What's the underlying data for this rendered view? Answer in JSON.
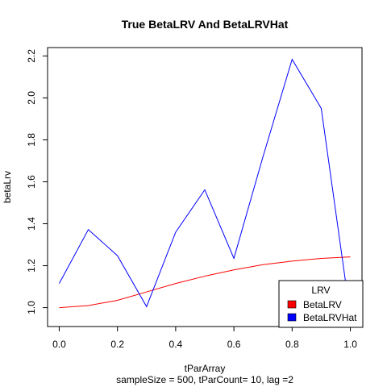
{
  "chart_data": {
    "type": "line",
    "title": "True BetaLRV And BetaLRVHat",
    "xlabel": "tParArray",
    "subtitle": "sampleSize = 500, tParCount= 10, lag =2",
    "ylabel": "betaLrv",
    "x": [
      0.0,
      0.1,
      0.2,
      0.3,
      0.4,
      0.5,
      0.6,
      0.7,
      0.8,
      0.9,
      1.0
    ],
    "xlim": [
      -0.04,
      1.04
    ],
    "ylim": [
      0.91,
      2.24
    ],
    "xticks": [
      0.0,
      0.2,
      0.4,
      0.6,
      0.8,
      1.0
    ],
    "xtick_labels": [
      "0.0",
      "0.2",
      "0.4",
      "0.6",
      "0.8",
      "1.0"
    ],
    "yticks": [
      1.0,
      1.2,
      1.4,
      1.6,
      1.8,
      2.0,
      2.2
    ],
    "ytick_labels": [
      "1.0",
      "1.2",
      "1.4",
      "1.6",
      "1.8",
      "2.0",
      "2.2"
    ],
    "grid": false,
    "legend": {
      "title": "LRV",
      "position": "bottom-right"
    },
    "series": [
      {
        "name": "BetaLRV",
        "color": "#ff0000",
        "values": [
          1.0,
          1.01,
          1.035,
          1.075,
          1.115,
          1.15,
          1.18,
          1.205,
          1.222,
          1.235,
          1.242
        ]
      },
      {
        "name": "BetaLRVHat",
        "color": "#0000ff",
        "values": [
          1.115,
          1.372,
          1.248,
          1.005,
          1.36,
          1.562,
          1.235,
          1.72,
          2.184,
          1.95,
          0.96
        ]
      }
    ]
  }
}
